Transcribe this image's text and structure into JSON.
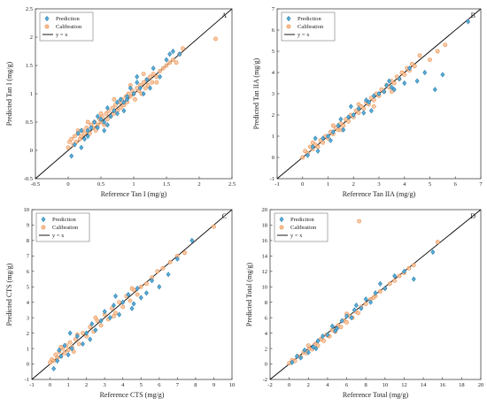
{
  "colors": {
    "prediction_fill": "#5aaed8",
    "prediction_stroke": "#2d7fae",
    "calibration_fill": "#f7c29c",
    "calibration_stroke": "#ea8a44",
    "line": "#000000"
  },
  "chart_data": [
    {
      "type": "scatter",
      "panel": "A",
      "xlabel": "Reference Tan I (mg/g)",
      "ylabel": "Predicted Tan I (mg/g)",
      "xlim": [
        -0.5,
        2.5
      ],
      "ylim": [
        -0.5,
        2.5
      ],
      "xticks": [
        -0.5,
        0,
        0.5,
        1,
        1.5,
        2,
        2.5
      ],
      "yticks": [
        -0.5,
        0,
        0.5,
        1,
        1.5,
        2,
        2.5
      ],
      "legend": {
        "position": "top-left",
        "entries": [
          "Prediction",
          "Calibration",
          "y = x"
        ]
      },
      "series": [
        {
          "name": "Prediction",
          "marker": "diamond",
          "x": [
            0.05,
            0.1,
            0.15,
            0.2,
            0.25,
            0.3,
            0.35,
            0.4,
            0.45,
            0.5,
            0.55,
            0.6,
            0.65,
            0.7,
            0.75,
            0.8,
            0.85,
            0.9,
            0.95,
            1.0,
            1.05,
            1.1,
            1.15,
            1.2,
            1.3,
            1.4,
            1.5,
            1.55,
            1.6,
            1.7,
            0.3,
            0.45,
            0.6,
            0.75,
            0.9,
            1.05,
            0.2,
            0.55,
            0.85,
            1.25
          ],
          "y": [
            -0.1,
            0.1,
            0.3,
            0.35,
            0.2,
            0.35,
            0.4,
            0.5,
            0.4,
            0.55,
            0.5,
            0.75,
            0.6,
            0.7,
            0.65,
            0.9,
            0.85,
            0.9,
            1.1,
            1.0,
            1.2,
            1.1,
            1.0,
            1.25,
            1.45,
            1.3,
            1.6,
            1.7,
            1.75,
            1.7,
            0.25,
            0.6,
            0.45,
            0.85,
            0.95,
            1.3,
            0.05,
            0.35,
            0.7,
            1.1
          ]
        },
        {
          "name": "Calibration",
          "marker": "circle",
          "x": [
            0.0,
            0.02,
            0.05,
            0.08,
            0.1,
            0.12,
            0.15,
            0.18,
            0.2,
            0.22,
            0.25,
            0.28,
            0.3,
            0.33,
            0.35,
            0.38,
            0.4,
            0.42,
            0.45,
            0.48,
            0.5,
            0.52,
            0.55,
            0.58,
            0.6,
            0.62,
            0.65,
            0.68,
            0.7,
            0.72,
            0.75,
            0.78,
            0.8,
            0.82,
            0.85,
            0.88,
            0.9,
            0.92,
            0.95,
            0.98,
            1.0,
            1.02,
            1.05,
            1.08,
            1.1,
            1.12,
            1.15,
            1.18,
            1.2,
            1.22,
            1.25,
            1.28,
            1.3,
            1.35,
            1.4,
            1.45,
            1.5,
            1.55,
            1.6,
            1.65,
            1.7,
            1.75,
            2.25,
            0.15,
            0.3,
            0.5,
            0.7,
            0.95,
            1.15,
            1.35
          ],
          "y": [
            0.05,
            0.15,
            0.2,
            0.1,
            0.25,
            0.15,
            0.3,
            0.2,
            0.25,
            0.35,
            0.3,
            0.4,
            0.35,
            0.3,
            0.45,
            0.4,
            0.5,
            0.35,
            0.45,
            0.55,
            0.5,
            0.6,
            0.45,
            0.65,
            0.55,
            0.7,
            0.6,
            0.75,
            0.65,
            0.8,
            0.7,
            0.85,
            0.75,
            0.9,
            0.8,
            0.95,
            0.85,
            1.0,
            0.95,
            1.05,
            1.0,
            0.9,
            1.1,
            1.05,
            1.15,
            1.0,
            1.2,
            1.1,
            1.25,
            1.15,
            1.3,
            1.2,
            1.35,
            1.3,
            1.4,
            1.45,
            1.5,
            1.55,
            1.6,
            1.55,
            1.7,
            1.8,
            1.97,
            0.35,
            0.5,
            0.65,
            0.9,
            1.15,
            1.35,
            1.2
          ]
        }
      ]
    },
    {
      "type": "scatter",
      "panel": "B",
      "xlabel": "Reference Tan IIA (mg/g)",
      "ylabel": "Predicted Tan IIA (mg/g)",
      "xlim": [
        -1,
        7
      ],
      "ylim": [
        -1,
        7
      ],
      "xticks": [
        -1,
        0,
        1,
        2,
        3,
        4,
        5,
        6,
        7
      ],
      "yticks": [
        -1,
        0,
        1,
        2,
        3,
        4,
        5,
        6,
        7
      ],
      "legend": {
        "position": "top-left",
        "entries": [
          "Prediction",
          "Calibration",
          "y = x"
        ]
      },
      "series": [
        {
          "name": "Prediction",
          "marker": "diamond",
          "x": [
            0.2,
            0.4,
            0.6,
            0.8,
            1.0,
            1.2,
            1.4,
            1.6,
            1.8,
            2.0,
            2.2,
            2.4,
            2.6,
            2.8,
            3.0,
            3.2,
            3.4,
            3.6,
            3.8,
            4.0,
            4.2,
            4.5,
            4.8,
            5.2,
            5.5,
            6.5,
            1.1,
            1.9,
            2.7,
            3.5,
            0.5,
            1.5,
            2.5,
            3.3
          ],
          "y": [
            0.1,
            0.5,
            0.3,
            0.9,
            1.0,
            1.2,
            1.5,
            1.3,
            1.9,
            2.0,
            2.3,
            2.1,
            2.6,
            2.9,
            3.0,
            3.1,
            3.6,
            3.2,
            3.7,
            3.5,
            4.2,
            3.6,
            4.0,
            3.2,
            3.9,
            6.4,
            0.8,
            2.4,
            2.2,
            3.3,
            0.9,
            1.8,
            2.7,
            3.4
          ]
        },
        {
          "name": "Calibration",
          "marker": "circle",
          "x": [
            0.0,
            0.1,
            0.2,
            0.3,
            0.4,
            0.5,
            0.6,
            0.7,
            0.8,
            0.9,
            1.0,
            1.1,
            1.2,
            1.3,
            1.4,
            1.5,
            1.6,
            1.7,
            1.8,
            1.9,
            2.0,
            2.1,
            2.2,
            2.3,
            2.4,
            2.5,
            2.6,
            2.7,
            2.8,
            2.9,
            3.0,
            3.1,
            3.2,
            3.3,
            3.4,
            3.5,
            3.6,
            3.7,
            3.8,
            3.9,
            4.0,
            4.1,
            4.2,
            4.3,
            4.4,
            5.0,
            5.3,
            5.6,
            1.5,
            2.2,
            2.8,
            3.5,
            4.6,
            0.4,
            1.2
          ],
          "y": [
            0.0,
            0.3,
            0.2,
            0.5,
            0.4,
            0.6,
            0.5,
            0.8,
            0.7,
            1.0,
            0.9,
            1.2,
            1.1,
            1.4,
            1.3,
            1.6,
            1.5,
            1.8,
            1.7,
            2.0,
            1.9,
            2.2,
            2.1,
            2.4,
            2.3,
            2.6,
            2.5,
            2.8,
            2.7,
            3.0,
            2.9,
            3.2,
            3.1,
            3.4,
            3.3,
            3.6,
            3.5,
            3.8,
            3.7,
            4.0,
            3.9,
            4.2,
            4.1,
            4.4,
            4.3,
            4.6,
            5.0,
            5.3,
            1.3,
            2.5,
            2.4,
            3.1,
            4.8,
            0.7,
            1.5
          ]
        }
      ]
    },
    {
      "type": "scatter",
      "panel": "C",
      "xlabel": "Reference CTS (mg/g)",
      "ylabel": "Predicted CTS (mg/g)",
      "xlim": [
        -1,
        10
      ],
      "ylim": [
        -1,
        10
      ],
      "xticks": [
        -1,
        0,
        1,
        2,
        3,
        4,
        5,
        6,
        7,
        8,
        9,
        10
      ],
      "yticks": [
        -1,
        0,
        1,
        2,
        3,
        4,
        5,
        6,
        7,
        8,
        9,
        10
      ],
      "legend": {
        "position": "top-left",
        "entries": [
          "Prediction",
          "Calibration",
          "y = x"
        ]
      },
      "series": [
        {
          "name": "Prediction",
          "marker": "diamond",
          "x": [
            0.2,
            0.4,
            0.6,
            0.8,
            1.0,
            1.2,
            1.5,
            1.8,
            2.0,
            2.3,
            2.5,
            2.8,
            3.0,
            3.3,
            3.5,
            3.8,
            4.0,
            4.3,
            4.5,
            4.8,
            5.0,
            5.3,
            5.6,
            6.0,
            6.5,
            7.0,
            7.8,
            1.1,
            2.2,
            3.6,
            4.6,
            0.5
          ],
          "y": [
            -0.3,
            0.2,
            0.5,
            1.2,
            0.6,
            1.0,
            1.8,
            1.3,
            2.0,
            2.6,
            2.2,
            2.8,
            3.4,
            3.0,
            3.8,
            3.2,
            4.0,
            4.5,
            3.6,
            4.9,
            4.3,
            4.6,
            5.4,
            5.0,
            5.8,
            6.8,
            8.0,
            2.0,
            1.6,
            4.4,
            3.9,
            0.9
          ]
        },
        {
          "name": "Calibration",
          "marker": "circle",
          "x": [
            0.0,
            0.1,
            0.2,
            0.3,
            0.4,
            0.5,
            0.6,
            0.7,
            0.8,
            0.9,
            1.0,
            1.1,
            1.2,
            1.4,
            1.6,
            1.8,
            2.0,
            2.2,
            2.4,
            2.6,
            2.8,
            3.0,
            3.2,
            3.4,
            3.6,
            3.8,
            4.0,
            4.2,
            4.4,
            4.6,
            4.8,
            5.0,
            5.3,
            5.6,
            5.9,
            6.2,
            6.6,
            7.0,
            7.4,
            9.0,
            1.5,
            2.5,
            3.5,
            4.5,
            0.6,
            1.3
          ],
          "y": [
            0.1,
            0.3,
            0.2,
            0.6,
            0.4,
            0.8,
            0.5,
            1.0,
            0.7,
            1.2,
            0.9,
            1.4,
            1.1,
            1.6,
            1.3,
            2.0,
            1.8,
            2.4,
            2.1,
            2.8,
            2.5,
            3.2,
            2.9,
            3.6,
            3.3,
            4.0,
            3.7,
            4.4,
            4.1,
            4.8,
            4.5,
            5.0,
            5.2,
            5.6,
            6.0,
            6.2,
            6.6,
            7.0,
            7.2,
            8.9,
            1.9,
            3.0,
            3.1,
            4.9,
            1.1,
            0.8
          ]
        }
      ]
    },
    {
      "type": "scatter",
      "panel": "D",
      "xlabel": "Reference Total (mg/g)",
      "ylabel": "Predicted Total (mg/g)",
      "xlim": [
        -2,
        20
      ],
      "ylim": [
        -2,
        20
      ],
      "xticks": [
        -2,
        0,
        2,
        4,
        6,
        8,
        10,
        12,
        14,
        16,
        18,
        20
      ],
      "yticks": [
        -2,
        0,
        2,
        4,
        6,
        8,
        10,
        12,
        14,
        16,
        18,
        20
      ],
      "legend": {
        "position": "top-left",
        "entries": [
          "Prediction",
          "Calibration",
          "y = x"
        ]
      },
      "series": [
        {
          "name": "Prediction",
          "marker": "diamond",
          "x": [
            0.3,
            0.8,
            1.2,
            1.6,
            2.0,
            2.5,
            3.0,
            3.5,
            4.0,
            4.5,
            5.0,
            5.5,
            6.0,
            6.5,
            7.0,
            7.5,
            8.0,
            8.5,
            9.0,
            10.0,
            11.0,
            12.0,
            13.0,
            15.0,
            2.8,
            4.8,
            6.8,
            9.5
          ],
          "y": [
            0.2,
            1.0,
            0.8,
            1.8,
            1.5,
            2.2,
            3.0,
            3.6,
            3.8,
            4.9,
            4.6,
            5.6,
            6.2,
            6.0,
            7.6,
            7.2,
            8.4,
            8.0,
            9.2,
            9.8,
            11.4,
            12.0,
            11.0,
            14.5,
            2.0,
            4.3,
            7.0,
            10.4
          ]
        },
        {
          "name": "Calibration",
          "marker": "circle",
          "x": [
            0.0,
            0.3,
            0.6,
            0.9,
            1.2,
            1.5,
            1.8,
            2.1,
            2.4,
            2.7,
            3.0,
            3.3,
            3.6,
            3.9,
            4.2,
            4.5,
            4.8,
            5.1,
            5.4,
            5.7,
            6.0,
            6.3,
            6.6,
            6.9,
            7.2,
            7.5,
            8.0,
            8.5,
            9.0,
            9.5,
            10.0,
            10.5,
            11.0,
            11.5,
            12.0,
            12.5,
            13.0,
            15.5,
            7.3,
            2.0,
            4.0,
            6.0,
            8.8
          ],
          "y": [
            0.1,
            0.5,
            0.4,
            1.0,
            0.9,
            1.5,
            1.4,
            2.0,
            1.9,
            2.6,
            2.4,
            3.2,
            3.0,
            3.8,
            3.6,
            4.4,
            4.2,
            5.0,
            4.8,
            5.6,
            5.4,
            6.2,
            6.0,
            6.8,
            6.6,
            7.4,
            7.8,
            8.4,
            8.8,
            9.4,
            9.8,
            10.4,
            10.8,
            11.4,
            11.8,
            12.4,
            12.8,
            15.8,
            18.5,
            2.4,
            3.7,
            6.5,
            8.6
          ]
        }
      ]
    }
  ]
}
